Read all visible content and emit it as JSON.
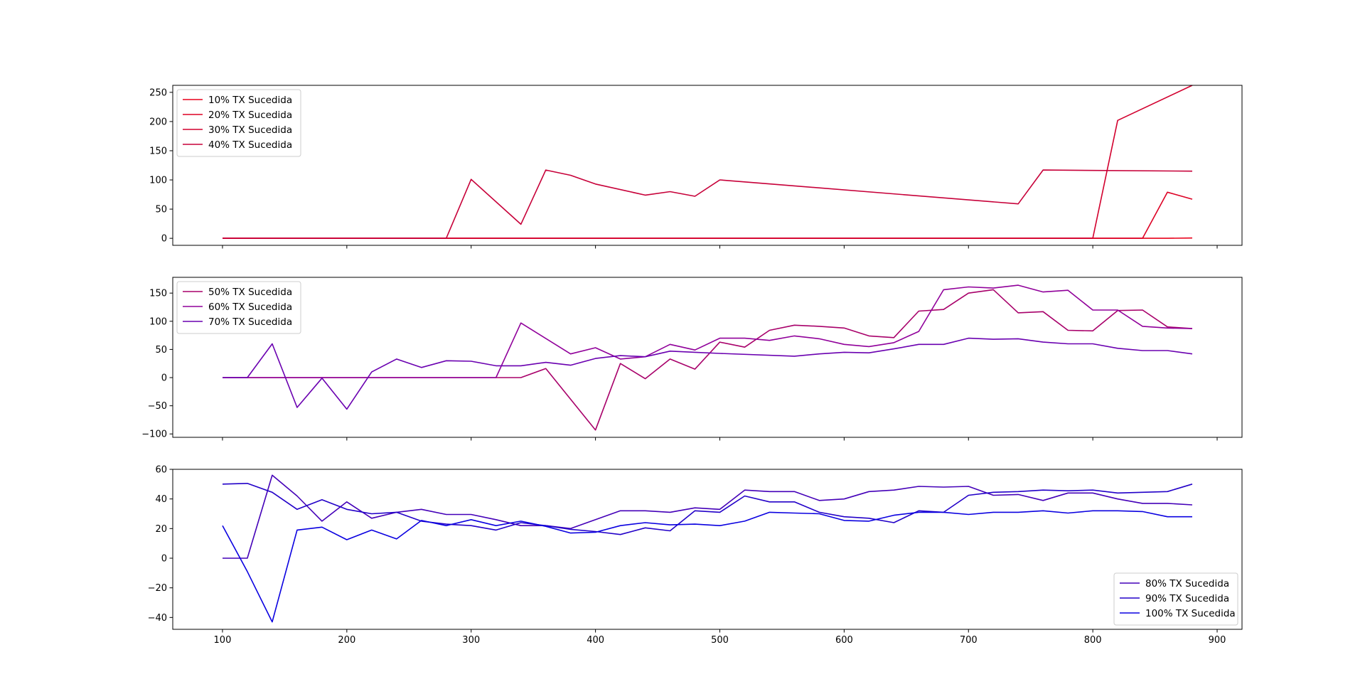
{
  "chart_data": [
    {
      "type": "line",
      "title": "",
      "xlabel": "",
      "ylabel": "",
      "xlim": [
        60,
        920
      ],
      "ylim": [
        -12,
        262
      ],
      "x_ticks": [
        100,
        200,
        300,
        400,
        500,
        600,
        700,
        800,
        900
      ],
      "show_x_tick_labels": false,
      "y_ticks": [
        0,
        50,
        100,
        150,
        200,
        250
      ],
      "grid": false,
      "legend": "upper-left",
      "series": [
        {
          "name": "10% TX Sucedida",
          "color": "#e8001a",
          "x": [
            100,
            860,
            880
          ],
          "y": [
            0,
            0,
            0.5
          ]
        },
        {
          "name": "20% TX Sucedida",
          "color": "#dd0024",
          "x": [
            100,
            840,
            860,
            880
          ],
          "y": [
            0,
            0,
            79,
            67
          ]
        },
        {
          "name": "30% TX Sucedida",
          "color": "#d2002e",
          "x": [
            100,
            800,
            820,
            880
          ],
          "y": [
            0,
            0,
            202,
            262
          ]
        },
        {
          "name": "40% TX Sucedida",
          "color": "#c70039",
          "x": [
            100,
            280,
            300,
            340,
            360,
            380,
            400,
            440,
            460,
            480,
            500,
            740,
            760,
            880
          ],
          "y": [
            0,
            0,
            101,
            24,
            117,
            108,
            93,
            74,
            80,
            72,
            100,
            59,
            117,
            115
          ]
        }
      ]
    },
    {
      "type": "line",
      "title": "",
      "xlabel": "",
      "ylabel": "",
      "xlim": [
        60,
        920
      ],
      "ylim": [
        -106,
        178
      ],
      "x_ticks": [
        100,
        200,
        300,
        400,
        500,
        600,
        700,
        800,
        900
      ],
      "show_x_tick_labels": false,
      "y_ticks": [
        -100,
        -50,
        0,
        50,
        100,
        150
      ],
      "grid": false,
      "legend": "upper-left",
      "series": [
        {
          "name": "50% TX Sucedida",
          "color": "#a8006a",
          "x": [
            100,
            340,
            360,
            400,
            420,
            440,
            460,
            480,
            500,
            520,
            540,
            560,
            580,
            600,
            620,
            640,
            660,
            680,
            700,
            720,
            740,
            760,
            780,
            800,
            820,
            840,
            860,
            880
          ],
          "y": [
            0,
            0,
            16,
            -93,
            25,
            -2,
            33,
            15,
            63,
            54,
            84,
            93,
            91,
            88,
            74,
            71,
            118,
            121,
            150,
            156,
            115,
            117,
            84,
            83,
            119,
            120,
            90,
            87
          ]
        },
        {
          "name": "60% TX Sucedida",
          "color": "#90009a",
          "x": [
            100,
            320,
            340,
            380,
            400,
            420,
            440,
            460,
            480,
            500,
            520,
            540,
            560,
            580,
            600,
            620,
            640,
            660,
            680,
            700,
            720,
            740,
            760,
            780,
            800,
            820,
            840,
            860,
            880
          ],
          "y": [
            0,
            0,
            97,
            42,
            53,
            33,
            37,
            59,
            49,
            70,
            70,
            66,
            74,
            69,
            59,
            55,
            62,
            82,
            156,
            161,
            159,
            164,
            152,
            155,
            120,
            120,
            91,
            88,
            87
          ]
        },
        {
          "name": "70% TX Sucedida",
          "color": "#6a00b0",
          "x": [
            100,
            120,
            140,
            160,
            180,
            200,
            220,
            240,
            260,
            280,
            300,
            320,
            340,
            360,
            380,
            400,
            420,
            440,
            460,
            480,
            500,
            560,
            580,
            600,
            620,
            640,
            660,
            680,
            700,
            720,
            740,
            760,
            780,
            800,
            820,
            840,
            860,
            880
          ],
          "y": [
            0,
            0,
            60,
            -53,
            -1,
            -56,
            10,
            33,
            18,
            30,
            29,
            21,
            21,
            27,
            22,
            34,
            39,
            37,
            47,
            45,
            43,
            38,
            42,
            45,
            44,
            51,
            59,
            59,
            70,
            68,
            69,
            63,
            60,
            60,
            52,
            48,
            48,
            42
          ]
        }
      ]
    },
    {
      "type": "line",
      "title": "",
      "xlabel": "",
      "ylabel": "",
      "xlim": [
        60,
        920
      ],
      "ylim": [
        -48,
        60
      ],
      "x_ticks": [
        100,
        200,
        300,
        400,
        500,
        600,
        700,
        800,
        900
      ],
      "x_tick_labels": [
        "100",
        "200",
        "300",
        "400",
        "500",
        "600",
        "700",
        "800",
        "900"
      ],
      "show_x_tick_labels": true,
      "y_ticks": [
        -40,
        -20,
        0,
        20,
        40,
        60
      ],
      "grid": false,
      "legend": "lower-right",
      "series": [
        {
          "name": "80% TX Sucedida",
          "color": "#4400b8",
          "x": [
            100,
            120,
            140,
            160,
            180,
            200,
            220,
            240,
            260,
            280,
            300,
            320,
            340,
            360,
            380,
            400,
            420,
            440,
            460,
            480,
            500,
            520,
            540,
            560,
            580,
            600,
            620,
            640,
            660,
            680,
            700,
            720,
            740,
            760,
            780,
            800,
            820,
            840,
            860,
            880
          ],
          "y": [
            0,
            0,
            56,
            42,
            25,
            38,
            27,
            31,
            33,
            29.5,
            29.5,
            26,
            22,
            22,
            20,
            26,
            32,
            32,
            31,
            34,
            33,
            46,
            45,
            45,
            39,
            40,
            45,
            46,
            48.5,
            48,
            48.5,
            42.5,
            43,
            39,
            44,
            44,
            40,
            37,
            37,
            36
          ]
        },
        {
          "name": "90% TX Sucedida",
          "color": "#2200c8",
          "x": [
            100,
            120,
            140,
            160,
            180,
            200,
            220,
            240,
            260,
            280,
            300,
            320,
            340,
            360,
            380,
            400,
            420,
            440,
            460,
            480,
            500,
            520,
            540,
            560,
            580,
            600,
            620,
            640,
            660,
            680,
            700,
            720,
            740,
            760,
            780,
            800,
            820,
            840,
            860,
            880
          ],
          "y": [
            50,
            50.5,
            44.5,
            33,
            39.5,
            33,
            30,
            31,
            25,
            23,
            22,
            19,
            24,
            22,
            19.5,
            18,
            16,
            20.5,
            18.5,
            32,
            31,
            42,
            38,
            38,
            31,
            28,
            27,
            24,
            32,
            31,
            42.5,
            44.5,
            45,
            46,
            45.5,
            46,
            44,
            44.5,
            45,
            50
          ]
        },
        {
          "name": "100% TX Sucedida",
          "color": "#0a00e0",
          "x": [
            100,
            120,
            140,
            160,
            180,
            200,
            220,
            240,
            260,
            280,
            300,
            320,
            340,
            360,
            380,
            400,
            420,
            440,
            460,
            480,
            500,
            520,
            540,
            560,
            580,
            600,
            620,
            640,
            660,
            680,
            700,
            720,
            740,
            760,
            780,
            800,
            820,
            840,
            860,
            880
          ],
          "y": [
            22,
            -9,
            -43,
            19,
            21,
            12.5,
            19,
            13,
            25.5,
            22,
            26,
            22,
            25,
            21.5,
            17,
            17.5,
            22,
            24,
            22.5,
            23,
            22,
            25,
            31,
            30.5,
            30,
            25.5,
            25,
            29,
            31,
            31,
            29.5,
            31,
            31,
            32,
            30.5,
            32,
            32,
            31.5,
            28,
            28
          ]
        }
      ]
    }
  ]
}
